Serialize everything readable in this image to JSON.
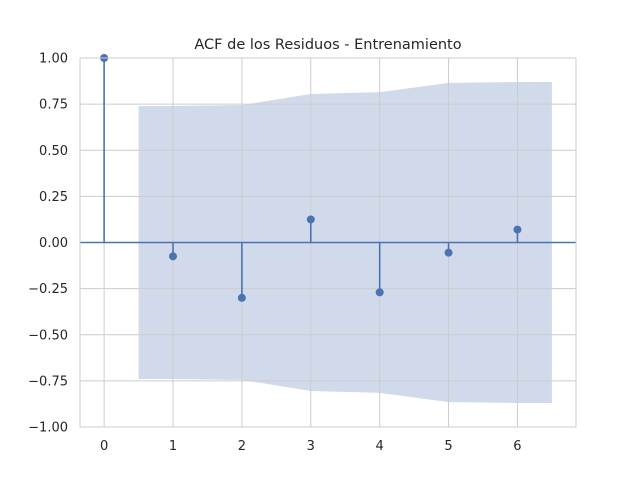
{
  "chart_data": {
    "type": "stem",
    "title": "ACF de los Residuos - Entrenamiento",
    "xlabel": "",
    "ylabel": "",
    "x": [
      0,
      1,
      2,
      3,
      4,
      5,
      6
    ],
    "values": [
      1.0,
      -0.075,
      -0.3,
      0.125,
      -0.27,
      -0.055,
      0.07
    ],
    "confidence_band": {
      "x": [
        0.5,
        1,
        2,
        3,
        4,
        5,
        6,
        6.5
      ],
      "upper": [
        0.74,
        0.74,
        0.745,
        0.805,
        0.815,
        0.865,
        0.87,
        0.87
      ],
      "lower": [
        -0.74,
        -0.74,
        -0.745,
        -0.805,
        -0.815,
        -0.865,
        -0.87,
        -0.87
      ]
    },
    "xlim": [
      -0.35,
      6.85
    ],
    "ylim": [
      -1.0,
      1.0
    ],
    "xticks": [
      "0",
      "1",
      "2",
      "3",
      "4",
      "5",
      "6"
    ],
    "yticks": [
      "1.00",
      "0.75",
      "0.50",
      "0.25",
      "0.00",
      "−0.25",
      "−0.50",
      "−0.75",
      "−1.00"
    ],
    "grid": true,
    "colors": {
      "stem": "#4c72b0",
      "band": "#c5d1e6",
      "grid": "#cccccc",
      "zero_line": "#4c72b0"
    }
  }
}
